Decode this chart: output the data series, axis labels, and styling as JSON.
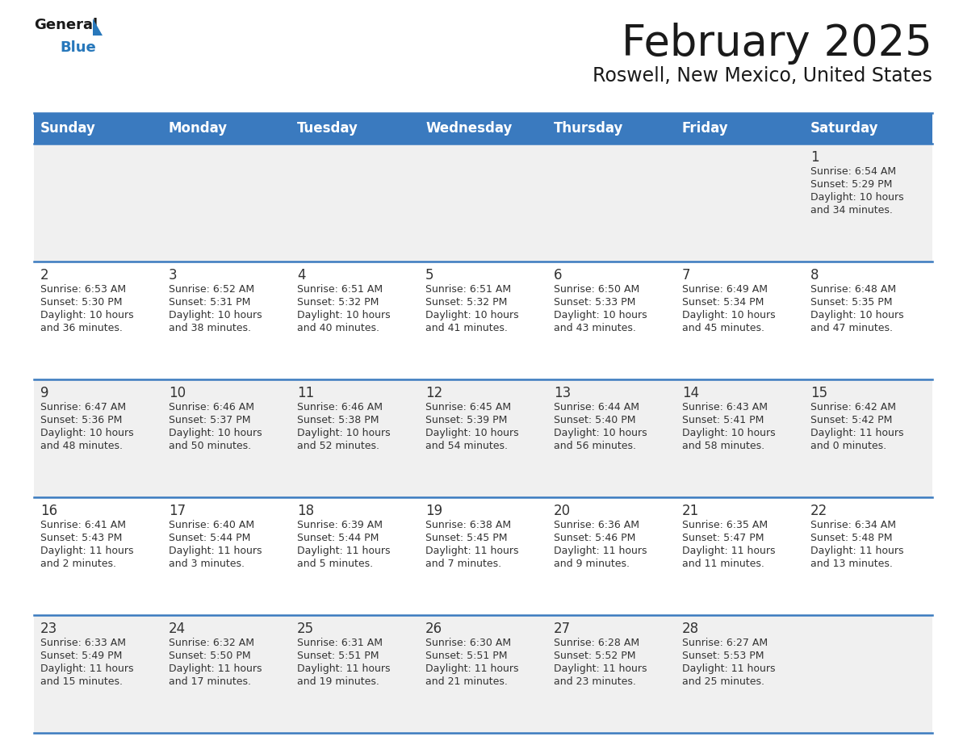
{
  "title": "February 2025",
  "subtitle": "Roswell, New Mexico, United States",
  "header_bg": "#3a7abf",
  "header_text": "#ffffff",
  "day_headers": [
    "Sunday",
    "Monday",
    "Tuesday",
    "Wednesday",
    "Thursday",
    "Friday",
    "Saturday"
  ],
  "odd_row_bg": "#f0f0f0",
  "even_row_bg": "#ffffff",
  "border_color": "#3a7abf",
  "text_color": "#333333",
  "day_num_color": "#333333",
  "logo_black": "#1a1a1a",
  "logo_blue": "#2878bb",
  "title_fontsize": 38,
  "subtitle_fontsize": 17,
  "header_fontsize": 12,
  "day_num_fontsize": 12,
  "cell_fontsize": 9,
  "calendar": [
    [
      null,
      null,
      null,
      null,
      null,
      null,
      {
        "day": "1",
        "sunrise": "6:54 AM",
        "sunset": "5:29 PM",
        "daylight": "10 hours",
        "daylight2": "and 34 minutes."
      }
    ],
    [
      {
        "day": "2",
        "sunrise": "6:53 AM",
        "sunset": "5:30 PM",
        "daylight": "10 hours",
        "daylight2": "and 36 minutes."
      },
      {
        "day": "3",
        "sunrise": "6:52 AM",
        "sunset": "5:31 PM",
        "daylight": "10 hours",
        "daylight2": "and 38 minutes."
      },
      {
        "day": "4",
        "sunrise": "6:51 AM",
        "sunset": "5:32 PM",
        "daylight": "10 hours",
        "daylight2": "and 40 minutes."
      },
      {
        "day": "5",
        "sunrise": "6:51 AM",
        "sunset": "5:32 PM",
        "daylight": "10 hours",
        "daylight2": "and 41 minutes."
      },
      {
        "day": "6",
        "sunrise": "6:50 AM",
        "sunset": "5:33 PM",
        "daylight": "10 hours",
        "daylight2": "and 43 minutes."
      },
      {
        "day": "7",
        "sunrise": "6:49 AM",
        "sunset": "5:34 PM",
        "daylight": "10 hours",
        "daylight2": "and 45 minutes."
      },
      {
        "day": "8",
        "sunrise": "6:48 AM",
        "sunset": "5:35 PM",
        "daylight": "10 hours",
        "daylight2": "and 47 minutes."
      }
    ],
    [
      {
        "day": "9",
        "sunrise": "6:47 AM",
        "sunset": "5:36 PM",
        "daylight": "10 hours",
        "daylight2": "and 48 minutes."
      },
      {
        "day": "10",
        "sunrise": "6:46 AM",
        "sunset": "5:37 PM",
        "daylight": "10 hours",
        "daylight2": "and 50 minutes."
      },
      {
        "day": "11",
        "sunrise": "6:46 AM",
        "sunset": "5:38 PM",
        "daylight": "10 hours",
        "daylight2": "and 52 minutes."
      },
      {
        "day": "12",
        "sunrise": "6:45 AM",
        "sunset": "5:39 PM",
        "daylight": "10 hours",
        "daylight2": "and 54 minutes."
      },
      {
        "day": "13",
        "sunrise": "6:44 AM",
        "sunset": "5:40 PM",
        "daylight": "10 hours",
        "daylight2": "and 56 minutes."
      },
      {
        "day": "14",
        "sunrise": "6:43 AM",
        "sunset": "5:41 PM",
        "daylight": "10 hours",
        "daylight2": "and 58 minutes."
      },
      {
        "day": "15",
        "sunrise": "6:42 AM",
        "sunset": "5:42 PM",
        "daylight": "11 hours",
        "daylight2": "and 0 minutes."
      }
    ],
    [
      {
        "day": "16",
        "sunrise": "6:41 AM",
        "sunset": "5:43 PM",
        "daylight": "11 hours",
        "daylight2": "and 2 minutes."
      },
      {
        "day": "17",
        "sunrise": "6:40 AM",
        "sunset": "5:44 PM",
        "daylight": "11 hours",
        "daylight2": "and 3 minutes."
      },
      {
        "day": "18",
        "sunrise": "6:39 AM",
        "sunset": "5:44 PM",
        "daylight": "11 hours",
        "daylight2": "and 5 minutes."
      },
      {
        "day": "19",
        "sunrise": "6:38 AM",
        "sunset": "5:45 PM",
        "daylight": "11 hours",
        "daylight2": "and 7 minutes."
      },
      {
        "day": "20",
        "sunrise": "6:36 AM",
        "sunset": "5:46 PM",
        "daylight": "11 hours",
        "daylight2": "and 9 minutes."
      },
      {
        "day": "21",
        "sunrise": "6:35 AM",
        "sunset": "5:47 PM",
        "daylight": "11 hours",
        "daylight2": "and 11 minutes."
      },
      {
        "day": "22",
        "sunrise": "6:34 AM",
        "sunset": "5:48 PM",
        "daylight": "11 hours",
        "daylight2": "and 13 minutes."
      }
    ],
    [
      {
        "day": "23",
        "sunrise": "6:33 AM",
        "sunset": "5:49 PM",
        "daylight": "11 hours",
        "daylight2": "and 15 minutes."
      },
      {
        "day": "24",
        "sunrise": "6:32 AM",
        "sunset": "5:50 PM",
        "daylight": "11 hours",
        "daylight2": "and 17 minutes."
      },
      {
        "day": "25",
        "sunrise": "6:31 AM",
        "sunset": "5:51 PM",
        "daylight": "11 hours",
        "daylight2": "and 19 minutes."
      },
      {
        "day": "26",
        "sunrise": "6:30 AM",
        "sunset": "5:51 PM",
        "daylight": "11 hours",
        "daylight2": "and 21 minutes."
      },
      {
        "day": "27",
        "sunrise": "6:28 AM",
        "sunset": "5:52 PM",
        "daylight": "11 hours",
        "daylight2": "and 23 minutes."
      },
      {
        "day": "28",
        "sunrise": "6:27 AM",
        "sunset": "5:53 PM",
        "daylight": "11 hours",
        "daylight2": "and 25 minutes."
      },
      null
    ]
  ]
}
